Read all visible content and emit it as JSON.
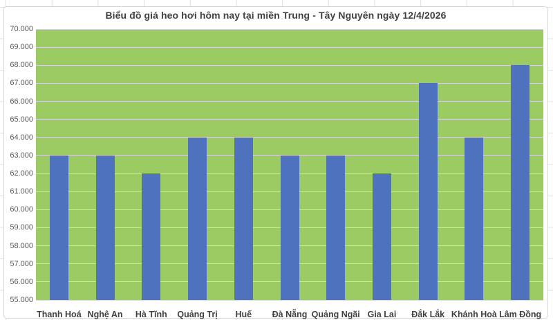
{
  "chart_data": {
    "type": "bar",
    "title": "Biểu đồ giá heo hơi hôm nay tại miền Trung - Tây Nguyên ngày 12/4/2026",
    "categories": [
      "Thanh Hoá",
      "Nghệ An",
      "Hà Tĩnh",
      "Quảng Trị",
      "Huế",
      "Đà Nẵng",
      "Quảng Ngãi",
      "Gia Lai",
      "Đắk Lắk",
      "Khánh Hoà",
      "Lâm Đồng"
    ],
    "values": [
      63000,
      63000,
      62000,
      64000,
      64000,
      63000,
      63000,
      62000,
      67000,
      64000,
      68000
    ],
    "xlabel": "",
    "ylabel": "",
    "ylim": [
      55000,
      70000
    ],
    "y_tick_step": 1000,
    "y_tick_labels_top_to_bottom": [
      "70.000",
      "69.000",
      "68.000",
      "67.000",
      "66.000",
      "65.000",
      "64.000",
      "63.000",
      "62.000",
      "61.000",
      "60.000",
      "59.000",
      "58.000",
      "57.000",
      "56.000",
      "55.000"
    ],
    "grid": "horizontal",
    "legend_position": "none",
    "colors": {
      "bar_fill": "#4E72BE",
      "plot_background": "#9CCB63",
      "gridline": "#D9D9D9",
      "title_text": "#404040",
      "y_axis_text": "#595959",
      "category_text": "#404040",
      "chart_background": "#FFFFFF",
      "chart_border": "#D7D7D7"
    }
  }
}
